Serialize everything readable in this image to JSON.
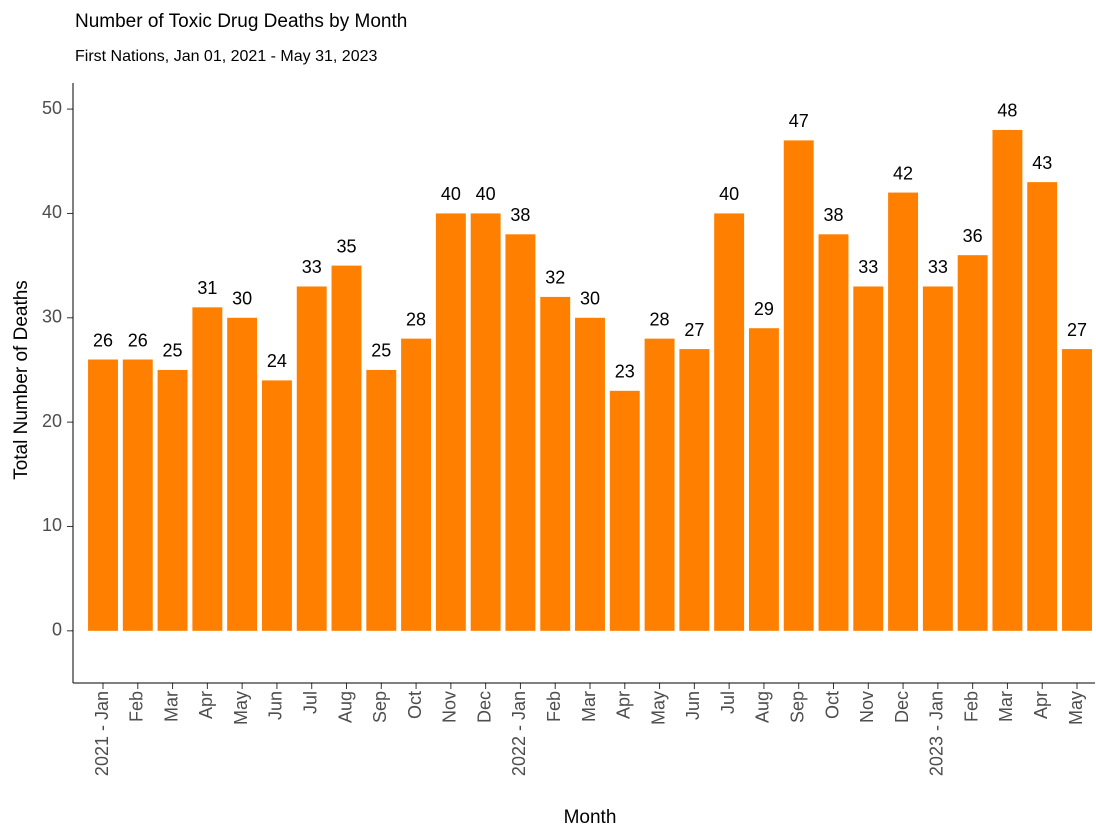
{
  "chart_data": {
    "type": "bar",
    "title": "Number of Toxic Drug Deaths by Month",
    "subtitle": "First Nations, Jan 01, 2021 - May 31, 2023",
    "x_label": "Month",
    "y_label": "Total Number of Deaths",
    "categories": [
      "2021 - Jan",
      "Feb",
      "Mar",
      "Apr",
      "May",
      "Jun",
      "Jul",
      "Aug",
      "Sep",
      "Oct",
      "Nov",
      "Dec",
      "2022 - Jan",
      "Feb",
      "Mar",
      "Apr",
      "May",
      "Jun",
      "Jul",
      "Aug",
      "Sep",
      "Oct",
      "Nov",
      "Dec",
      "2023 - Jan",
      "Feb",
      "Mar",
      "Apr",
      "May"
    ],
    "values": [
      26,
      26,
      25,
      31,
      30,
      24,
      33,
      35,
      25,
      28,
      40,
      40,
      38,
      32,
      30,
      23,
      28,
      27,
      40,
      29,
      47,
      38,
      33,
      42,
      33,
      36,
      48,
      43,
      27
    ],
    "color": "#ff7f00",
    "ylim": [
      -5,
      52.5
    ],
    "yticks": [
      0,
      10,
      20,
      30,
      40,
      50
    ],
    "grid": false
  }
}
